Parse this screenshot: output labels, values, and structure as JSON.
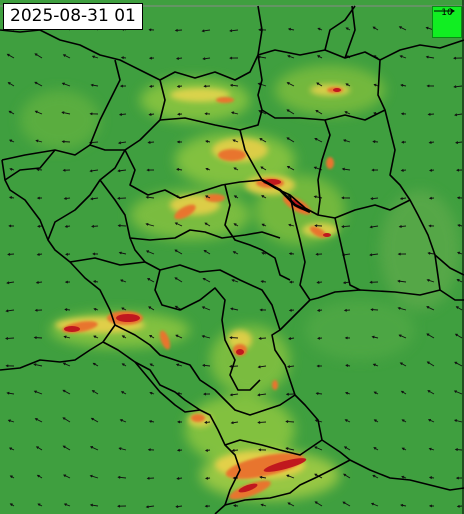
{
  "timestamp": "2025-08-31 01",
  "wind_scale": {
    "label": "10",
    "icon": "scale-arrow-icon"
  },
  "colors": {
    "background": "#3a9e3e",
    "low": "#4caf45",
    "mid": "#8dc63f",
    "high": "#e8d24a",
    "very_high": "#e8742e",
    "extreme": "#c0181e",
    "border": "#000000",
    "scale_box": "#11ee22"
  }
}
